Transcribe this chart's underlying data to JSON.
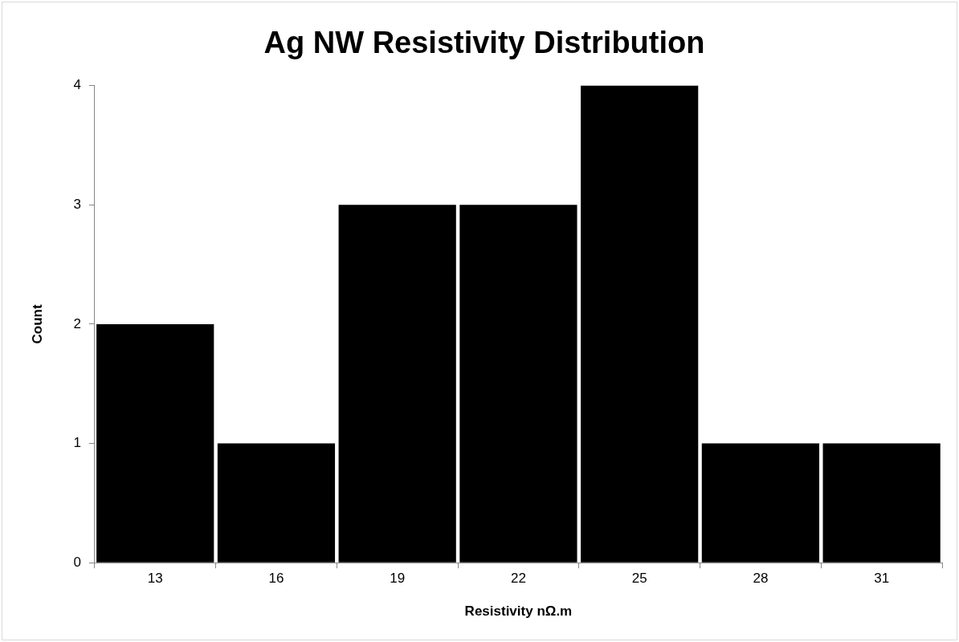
{
  "chart_data": {
    "type": "bar",
    "title": "Ag NW Resistivity Distribution",
    "xlabel": "Resistivity nΩ.m",
    "ylabel": "Count",
    "categories": [
      "13",
      "16",
      "19",
      "22",
      "25",
      "28",
      "31"
    ],
    "values": [
      2,
      1,
      3,
      3,
      4,
      1,
      1
    ],
    "color": "#000000",
    "ylim": [
      0,
      4
    ],
    "yticks": [
      0,
      1,
      2,
      3,
      4
    ],
    "grid": false,
    "legend": false
  }
}
